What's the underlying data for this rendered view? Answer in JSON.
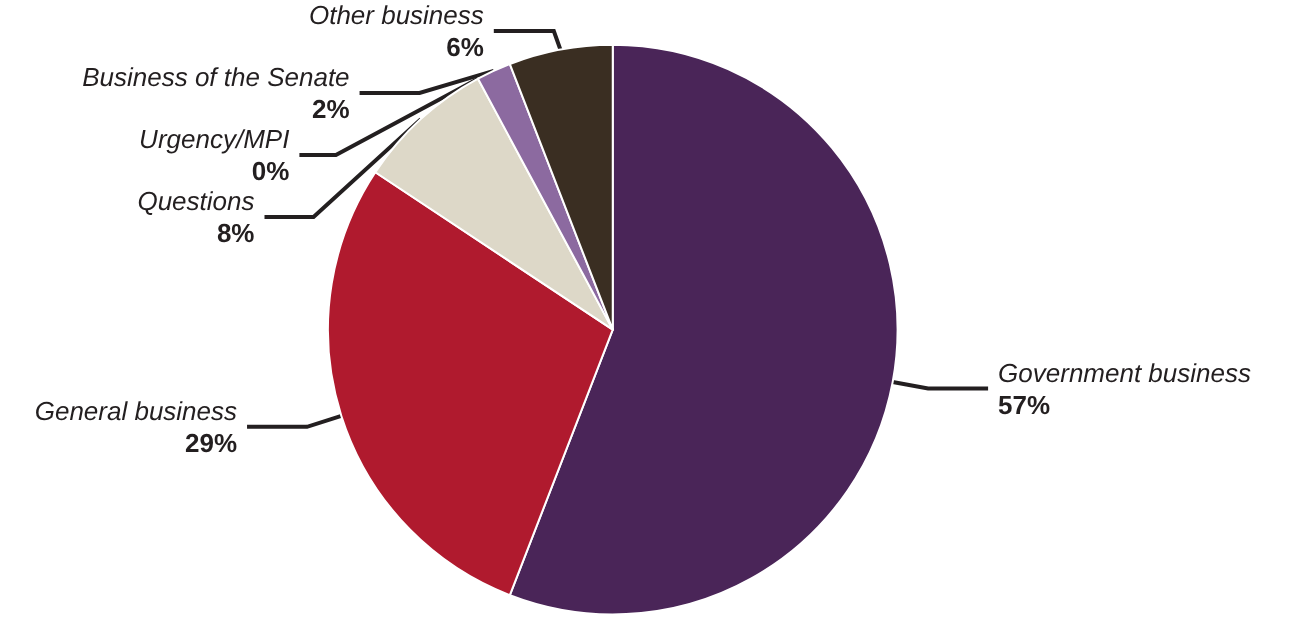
{
  "chart_data": {
    "type": "pie",
    "categories": [
      "Government business",
      "General business",
      "Questions",
      "Urgency/MPI",
      "Business of the Senate",
      "Other business"
    ],
    "values": [
      57,
      29,
      8,
      0,
      2,
      6
    ],
    "value_labels": [
      "57%",
      "29%",
      "8%",
      "0%",
      "2%",
      "6%"
    ],
    "colors": [
      "#4a2558",
      "#b01a2e",
      "#ddd8c8",
      "#9a8aa8",
      "#8c6aa0",
      "#3a2e22"
    ],
    "legend": false
  }
}
